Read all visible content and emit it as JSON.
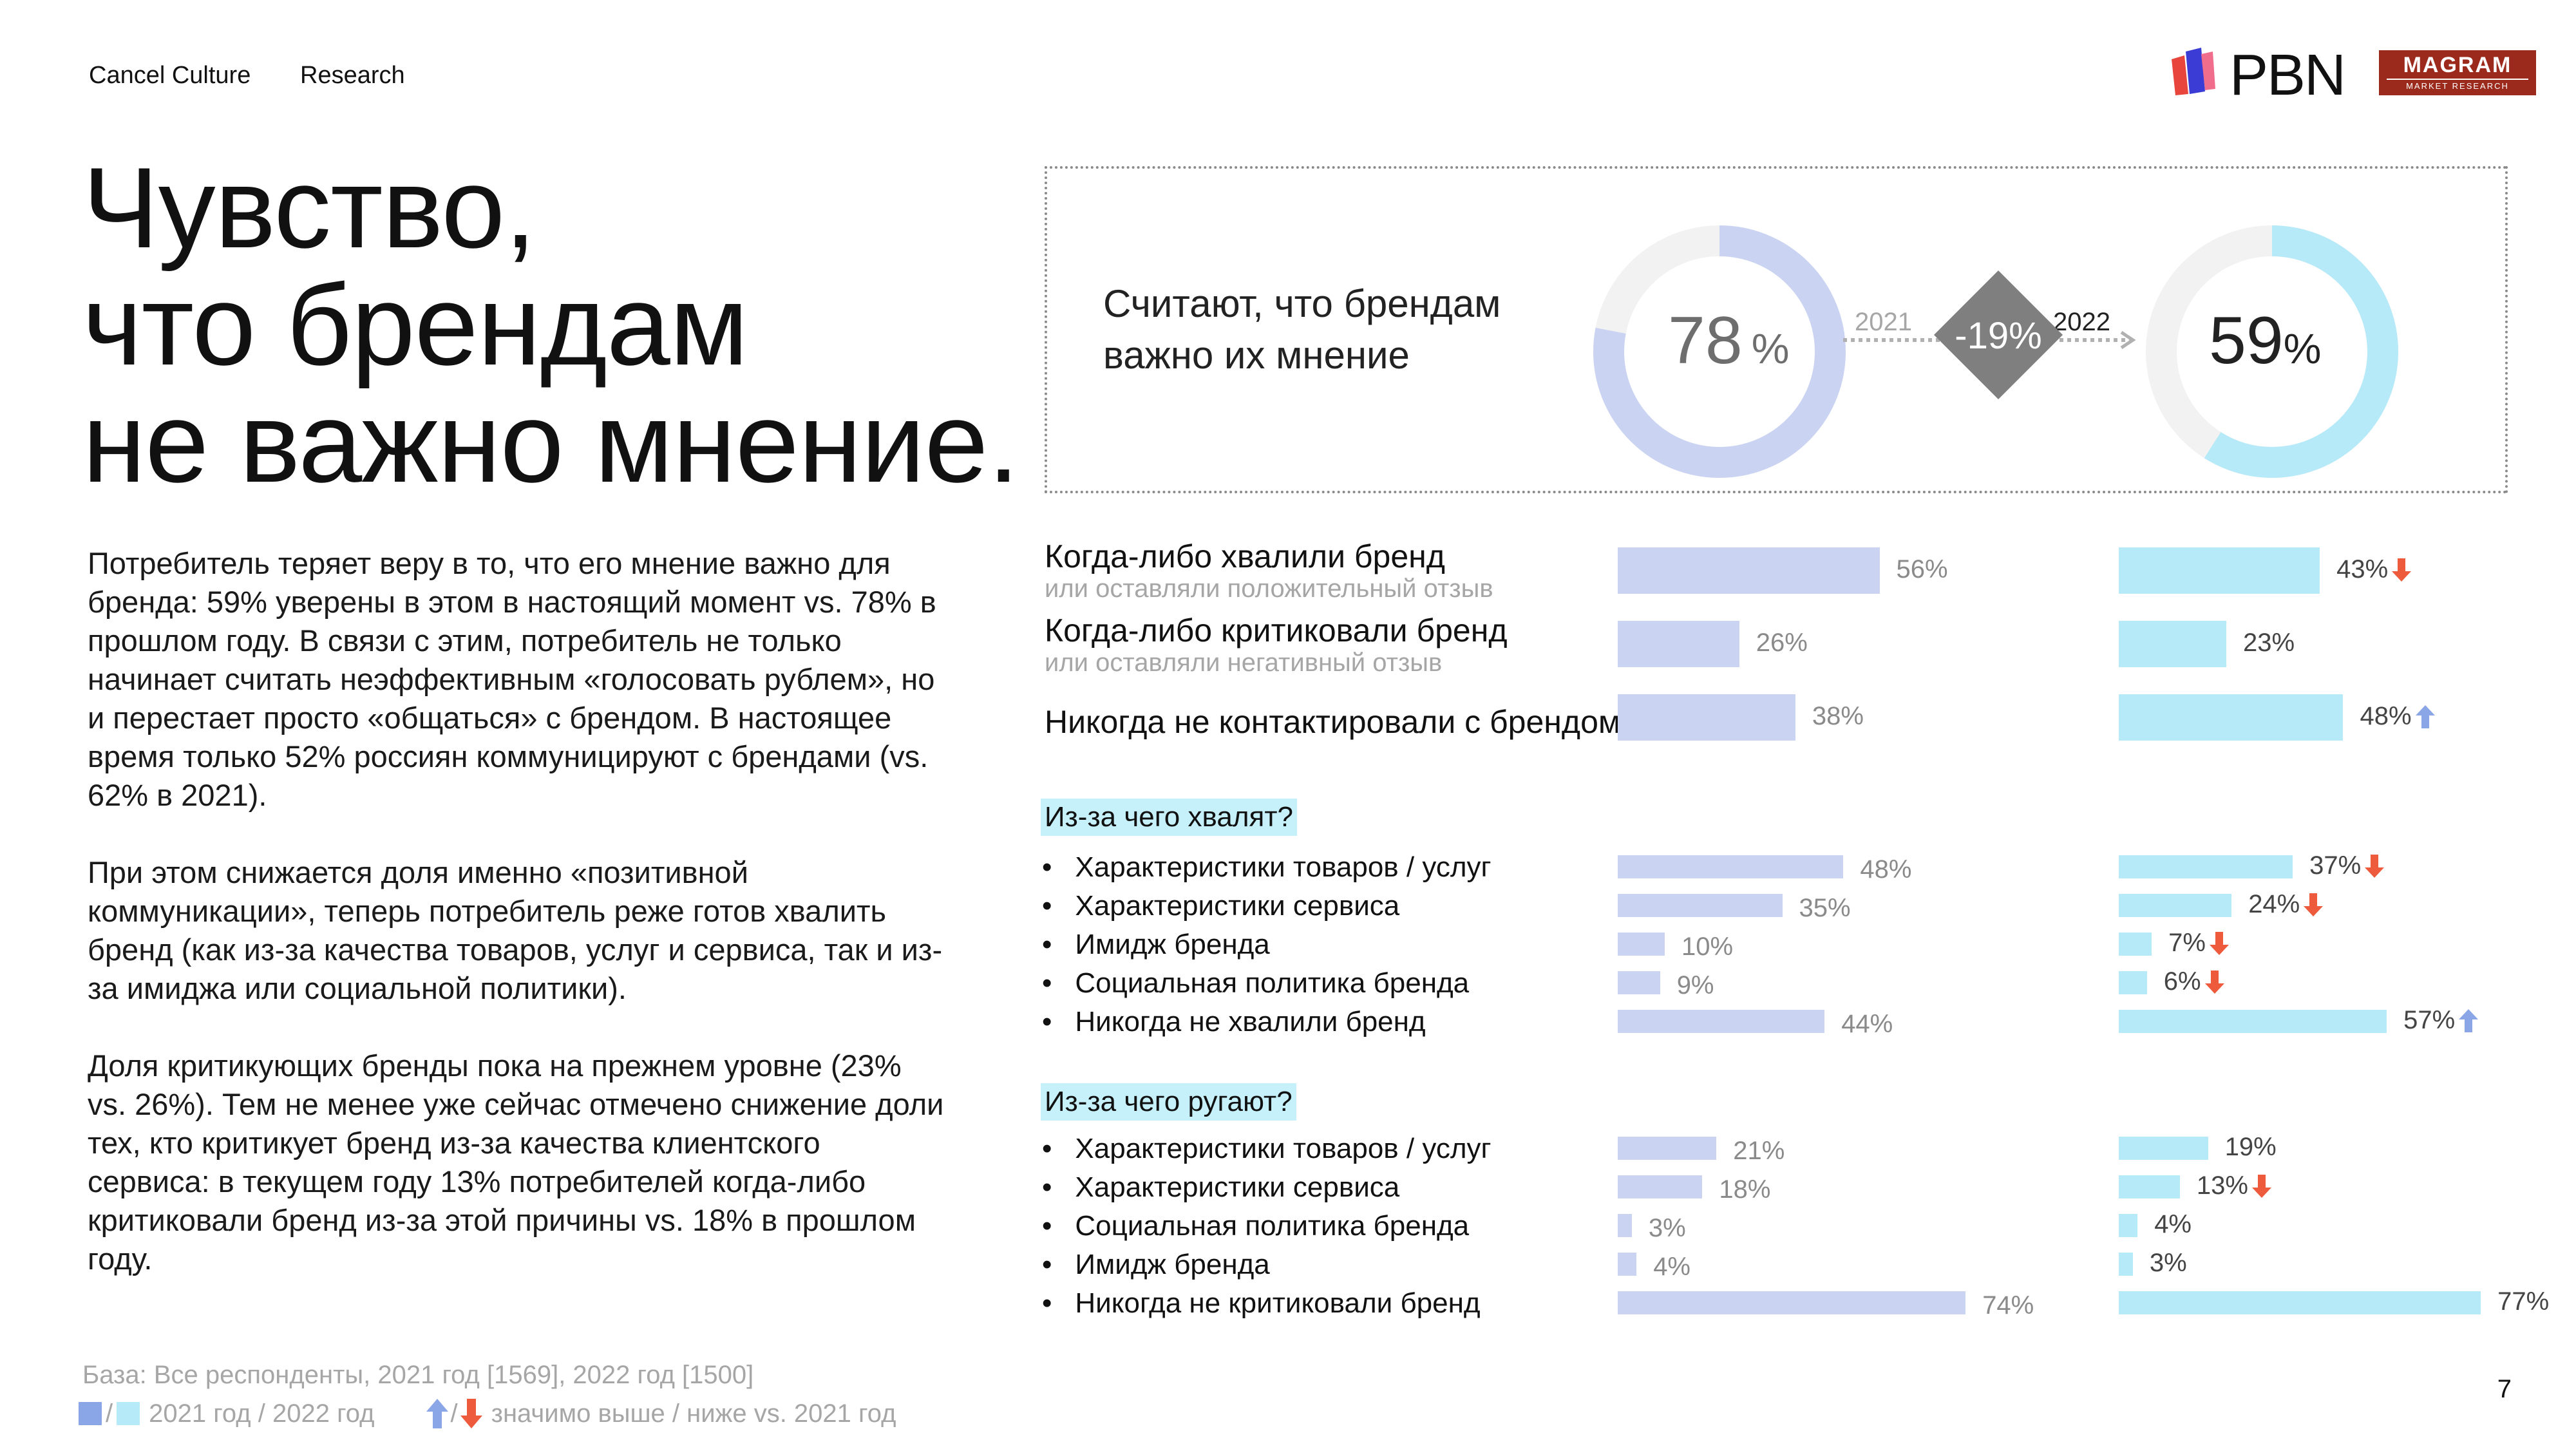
{
  "header": {
    "left1": "Cancel Culture",
    "left2": "Research",
    "logo_pbn": "PBN",
    "logo_magram": "MAGRAM",
    "logo_magram_sub": "MARKET RESEARCH"
  },
  "title": "Чувство,\nчто брендам\nне важно мнение.",
  "body": [
    "Потребитель теряет веру в то, что его мнение важно для бренда: 59% уверены в этом в настоящий момент vs. 78% в прошлом году. В связи с этим, потребитель не только начинает считать неэффективным «голосовать рублем», но и перестает просто «общаться» с брендом. В настоящее время только 52% россиян коммуницируют с брендами (vs. 62% в 2021).",
    "При этом снижается доля именно «позитивной коммуникации», теперь потребитель реже готов хвалить бренд (как из-за качества товаров, услуг и сервиса, так и из-за имиджа или социальной политики).",
    "Доля критикующих бренды пока на прежнем уровне (23% vs. 26%). Тем не менее уже сейчас отмечено снижение доли тех, кто критикует бренд из-за качества клиентского сервиса: в текущем году 13% потребителей когда-либо критиковали бренд из-за этой причины vs. 18% в прошлом году."
  ],
  "footer": {
    "base": "База: Все респонденты, 2021 год [1569], 2022 год [1500]",
    "legend_years": "2021 год / 2022 год",
    "legend_sig": "значимо выше / ниже vs. 2021 год",
    "slash": "/",
    "page": "7"
  },
  "colors": {
    "c2021": "#cad4f2",
    "c2022": "#b6eaf8",
    "up": "#8aa6e6",
    "down": "#ee5a3c",
    "section_bg": "#c6f1fb"
  },
  "chart_data": [
    {
      "type": "pie",
      "title": "Считают, что брендам\nважно их мнение",
      "series": [
        {
          "name": "2021",
          "values": [
            78
          ]
        },
        {
          "name": "2022",
          "values": [
            59
          ]
        }
      ],
      "unit": "%",
      "change_label": "-19%",
      "year_2021": "2021",
      "year_2022": "2022"
    },
    {
      "type": "bar",
      "orientation": "horizontal",
      "groups": [
        {
          "key": "contact",
          "items": [
            {
              "label": "Когда-либо хвалили бренд",
              "sub": "или оставляли положительный отзыв",
              "v2021": 56,
              "v2022": 43,
              "sig": "down"
            },
            {
              "label": "Когда-либо критиковали бренд",
              "sub": "или оставляли негативный отзыв",
              "v2021": 26,
              "v2022": 23,
              "sig": ""
            },
            {
              "label": "Никогда не контактировали с брендом",
              "sub": "",
              "v2021": 38,
              "v2022": 48,
              "sig": "up"
            }
          ]
        },
        {
          "key": "praise",
          "title": "Из-за чего хвалят?",
          "items": [
            {
              "label": "Характеристики товаров / услуг",
              "v2021": 48,
              "v2022": 37,
              "sig": "down"
            },
            {
              "label": "Характеристики сервиса",
              "v2021": 35,
              "v2022": 24,
              "sig": "down"
            },
            {
              "label": "Имидж бренда",
              "v2021": 10,
              "v2022": 7,
              "sig": "down"
            },
            {
              "label": "Социальная политика бренда",
              "v2021": 9,
              "v2022": 6,
              "sig": "down"
            },
            {
              "label": "Никогда не хвалили бренд",
              "v2021": 44,
              "v2022": 57,
              "sig": "up"
            }
          ]
        },
        {
          "key": "criticism",
          "title": "Из-за чего ругают?",
          "items": [
            {
              "label": "Характеристики товаров / услуг",
              "v2021": 21,
              "v2022": 19,
              "sig": ""
            },
            {
              "label": "Характеристики сервиса",
              "v2021": 18,
              "v2022": 13,
              "sig": "down"
            },
            {
              "label": "Социальная политика бренда",
              "v2021": 3,
              "v2022": 4,
              "sig": ""
            },
            {
              "label": "Имидж бренда",
              "v2021": 4,
              "v2022": 3,
              "sig": ""
            },
            {
              "label": "Никогда не критиковали бренд",
              "v2021": 74,
              "v2022": 77,
              "sig": ""
            }
          ]
        }
      ],
      "unit": "%"
    }
  ]
}
